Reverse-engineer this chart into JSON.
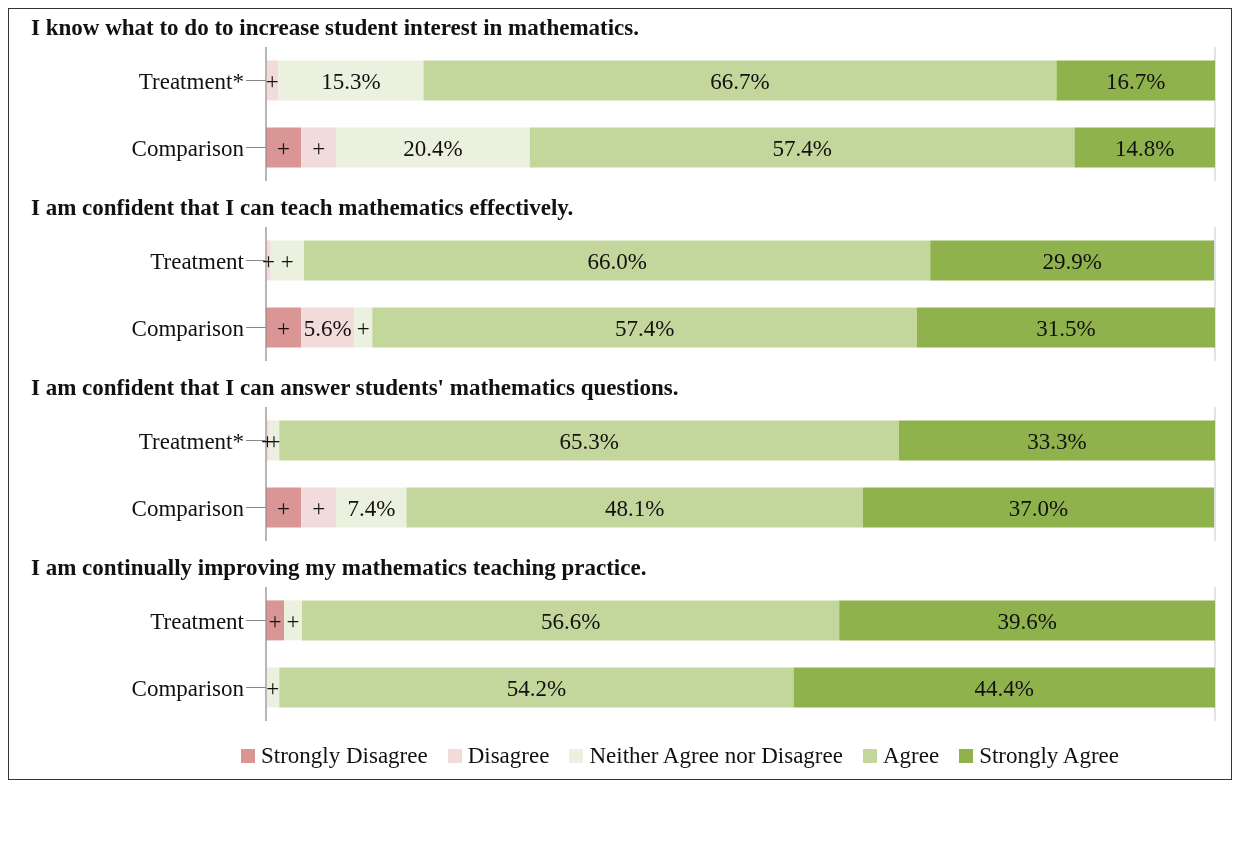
{
  "chart_data": [
    {
      "type": "bar",
      "orientation": "horizontal",
      "stacked": true,
      "title": "I know what to do to increase student interest in mathematics.",
      "categories": [
        "Treatment*",
        "Comparison"
      ],
      "xlim": [
        0,
        100
      ],
      "grid": "x",
      "tick_labels": "y",
      "series": [
        {
          "color": "#d99694",
          "values": [
            0,
            3.7
          ],
          "value_labels": [
            null,
            "+"
          ]
        },
        {
          "color": "#f2dcdb",
          "values": [
            1.3,
            3.7
          ],
          "value_labels": [
            "+",
            "+"
          ]
        },
        {
          "color": "#ebf1de",
          "values": [
            15.3,
            20.4
          ],
          "value_labels": [
            "15.3%",
            "20.4%"
          ]
        },
        {
          "color": "#c3d69b",
          "values": [
            66.7,
            57.4
          ],
          "value_labels": [
            "66.7%",
            "57.4%"
          ]
        },
        {
          "color": "#8fb24c",
          "values": [
            16.7,
            14.8
          ],
          "value_labels": [
            "16.7%",
            "14.8%"
          ]
        }
      ]
    },
    {
      "type": "bar",
      "orientation": "horizontal",
      "stacked": true,
      "title": "I am confident that I can teach mathematics effectively.",
      "categories": [
        "Treatment",
        "Comparison"
      ],
      "xlim": [
        0,
        100
      ],
      "grid": "x",
      "tick_labels": "y",
      "series": [
        {
          "color": "#d99694",
          "values": [
            0,
            3.7
          ],
          "value_labels": [
            null,
            "+"
          ]
        },
        {
          "color": "#f2dcdb",
          "values": [
            0.5,
            5.6
          ],
          "value_labels": [
            "+",
            "5.6%"
          ]
        },
        {
          "color": "#ebf1de",
          "values": [
            3.5,
            1.9
          ],
          "value_labels": [
            "+",
            "+"
          ]
        },
        {
          "color": "#c3d69b",
          "values": [
            66.0,
            57.4
          ],
          "value_labels": [
            "66.0%",
            "57.4%"
          ]
        },
        {
          "color": "#8fb24c",
          "values": [
            29.9,
            31.5
          ],
          "value_labels": [
            "29.9%",
            "31.5%"
          ]
        }
      ]
    },
    {
      "type": "bar",
      "orientation": "horizontal",
      "stacked": true,
      "title": "I am confident that I can answer students' mathematics questions.",
      "categories": [
        "Treatment*",
        "Comparison"
      ],
      "xlim": [
        0,
        100
      ],
      "grid": "x",
      "tick_labels": "y",
      "series": [
        {
          "color": "#d99694",
          "values": [
            0,
            3.7
          ],
          "value_labels": [
            null,
            "+"
          ]
        },
        {
          "color": "#f2dcdb",
          "values": [
            0.3,
            3.7
          ],
          "value_labels": [
            "+",
            "+"
          ]
        },
        {
          "color": "#ebf1de",
          "values": [
            1.1,
            7.4
          ],
          "value_labels": [
            "+",
            "7.4%"
          ]
        },
        {
          "color": "#c3d69b",
          "values": [
            65.3,
            48.1
          ],
          "value_labels": [
            "65.3%",
            "48.1%"
          ]
        },
        {
          "color": "#8fb24c",
          "values": [
            33.3,
            37.0
          ],
          "value_labels": [
            "33.3%",
            "37.0%"
          ]
        }
      ]
    },
    {
      "type": "bar",
      "orientation": "horizontal",
      "stacked": true,
      "title": "I am continually improving my mathematics teaching practice.",
      "categories": [
        "Treatment",
        "Comparison"
      ],
      "xlim": [
        0,
        100
      ],
      "grid": "x",
      "tick_labels": "y",
      "legend": "bottom",
      "series": [
        {
          "name": "Strongly Disagree",
          "color": "#d99694",
          "values": [
            1.9,
            0
          ],
          "value_labels": [
            "+",
            null
          ]
        },
        {
          "name": "Disagree",
          "color": "#f2dcdb",
          "values": [
            0,
            0
          ],
          "value_labels": [
            null,
            null
          ]
        },
        {
          "name": "Neither Agree nor Disagree",
          "color": "#ebf1de",
          "values": [
            1.9,
            1.4
          ],
          "value_labels": [
            "+",
            "+"
          ]
        },
        {
          "name": "Agree",
          "color": "#c3d69b",
          "values": [
            56.6,
            54.2
          ],
          "value_labels": [
            "56.6%",
            "54.2%"
          ]
        },
        {
          "name": "Strongly Agree",
          "color": "#8fb24c",
          "values": [
            39.6,
            44.4
          ],
          "value_labels": [
            "39.6%",
            "44.4%"
          ]
        }
      ]
    }
  ]
}
